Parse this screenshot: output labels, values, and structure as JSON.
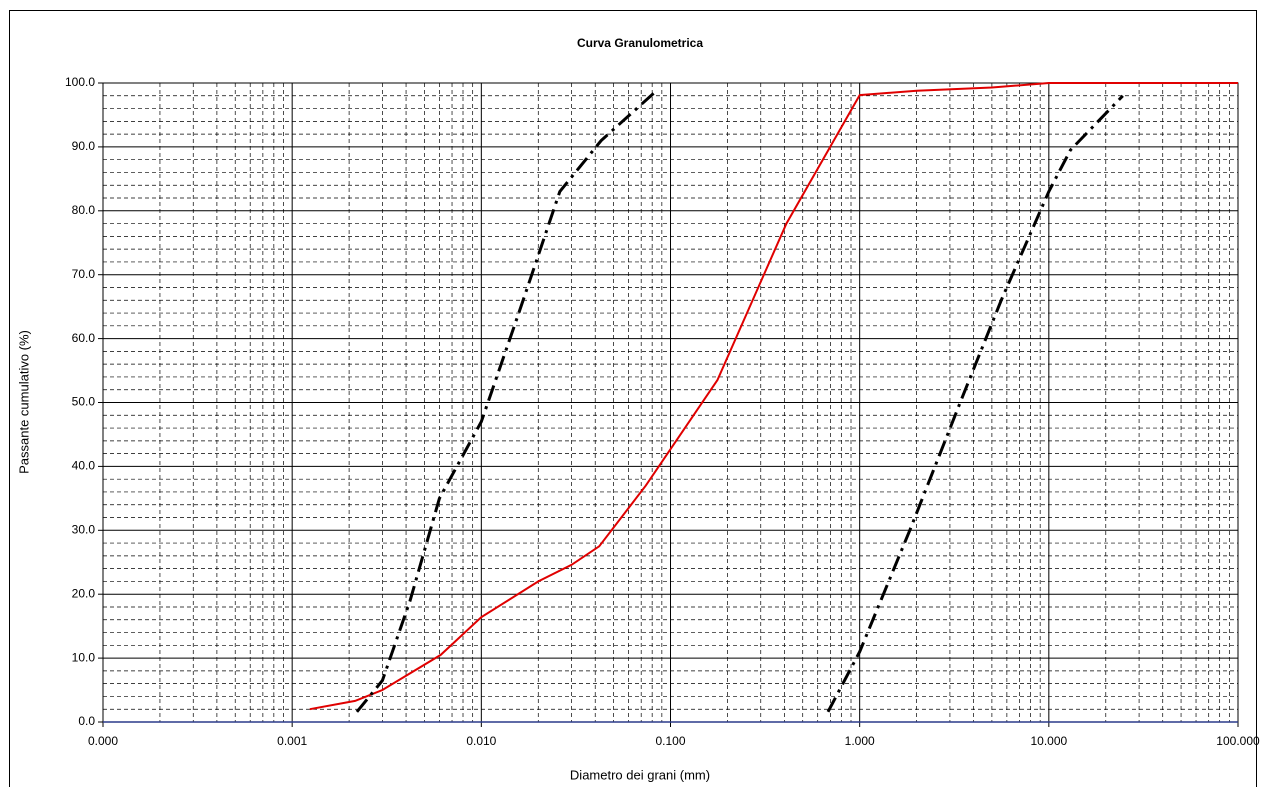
{
  "chart_data": {
    "type": "line",
    "title": "Curva Granulometrica",
    "x_label": "Diametro dei grani (mm)",
    "y_label": "Passante cumulativo (%)",
    "xscale": "log",
    "grid": true,
    "minor_grid": true,
    "xlim": [
      0.0001,
      100
    ],
    "ylim": [
      0,
      100
    ],
    "xticks": [
      {
        "value": 0.0001,
        "label": "0.000"
      },
      {
        "value": 0.001,
        "label": "0.001"
      },
      {
        "value": 0.01,
        "label": "0.010"
      },
      {
        "value": 0.1,
        "label": "0.100"
      },
      {
        "value": 1,
        "label": "1.000"
      },
      {
        "value": 10,
        "label": "10.000"
      },
      {
        "value": 100,
        "label": "100.000"
      }
    ],
    "yticks": [
      {
        "value": 0,
        "label": "0.0"
      },
      {
        "value": 10,
        "label": "10.0"
      },
      {
        "value": 20,
        "label": "20.0"
      },
      {
        "value": 30,
        "label": "30.0"
      },
      {
        "value": 40,
        "label": "40.0"
      },
      {
        "value": 50,
        "label": "50.0"
      },
      {
        "value": 60,
        "label": "60.0"
      },
      {
        "value": 70,
        "label": "70.0"
      },
      {
        "value": 80,
        "label": "80.0"
      },
      {
        "value": 90,
        "label": "90.0"
      },
      {
        "value": 100,
        "label": "100.0"
      }
    ],
    "series": [
      {
        "color": "#e00000",
        "dash": "solid",
        "x": [
          0.00124,
          0.00215,
          0.003,
          0.0061,
          0.01,
          0.02,
          0.03,
          0.042,
          0.074,
          0.177,
          0.41,
          1.0,
          2.0,
          5.0,
          10,
          100
        ],
        "values": [
          2.0,
          3.3,
          5.0,
          10.5,
          16.4,
          22.0,
          24.6,
          27.5,
          37.0,
          53.5,
          78.0,
          98.1,
          98.8,
          99.3,
          100,
          100
        ]
      },
      {
        "color": "#000000",
        "dash": "dashdot",
        "x": [
          0.0022,
          0.003,
          0.0042,
          0.006,
          0.01,
          0.016,
          0.026,
          0.043,
          0.083
        ],
        "values": [
          1.6,
          6.5,
          19,
          35,
          47,
          64.5,
          83,
          91,
          98.6
        ]
      },
      {
        "color": "#000000",
        "dash": "dashdot",
        "x": [
          0.68,
          1.0,
          1.84,
          3.4,
          5.6,
          10,
          13,
          24.6
        ],
        "values": [
          1.6,
          11,
          30,
          50,
          66,
          83,
          89.5,
          98
        ]
      }
    ]
  }
}
